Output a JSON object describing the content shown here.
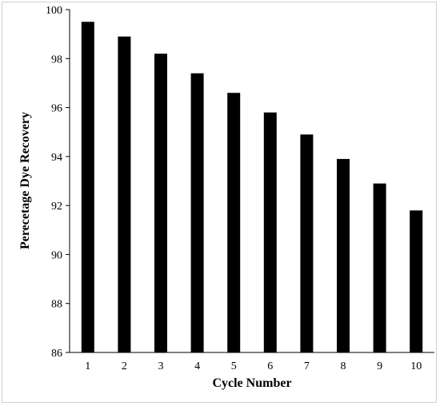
{
  "chart_data": {
    "type": "bar",
    "title": "",
    "xlabel": "Cycle Number",
    "ylabel": "Perecetage Dye Recovery",
    "categories": [
      "1",
      "2",
      "3",
      "4",
      "5",
      "6",
      "7",
      "8",
      "9",
      "10"
    ],
    "values": [
      99.5,
      98.9,
      98.2,
      97.4,
      96.6,
      95.8,
      94.9,
      93.9,
      92.9,
      91.8
    ],
    "ylim": [
      86,
      100
    ],
    "yticks": [
      86,
      88,
      90,
      92,
      94,
      96,
      98,
      100
    ],
    "grid": false,
    "legend": "none",
    "bar_color": "#000000"
  }
}
